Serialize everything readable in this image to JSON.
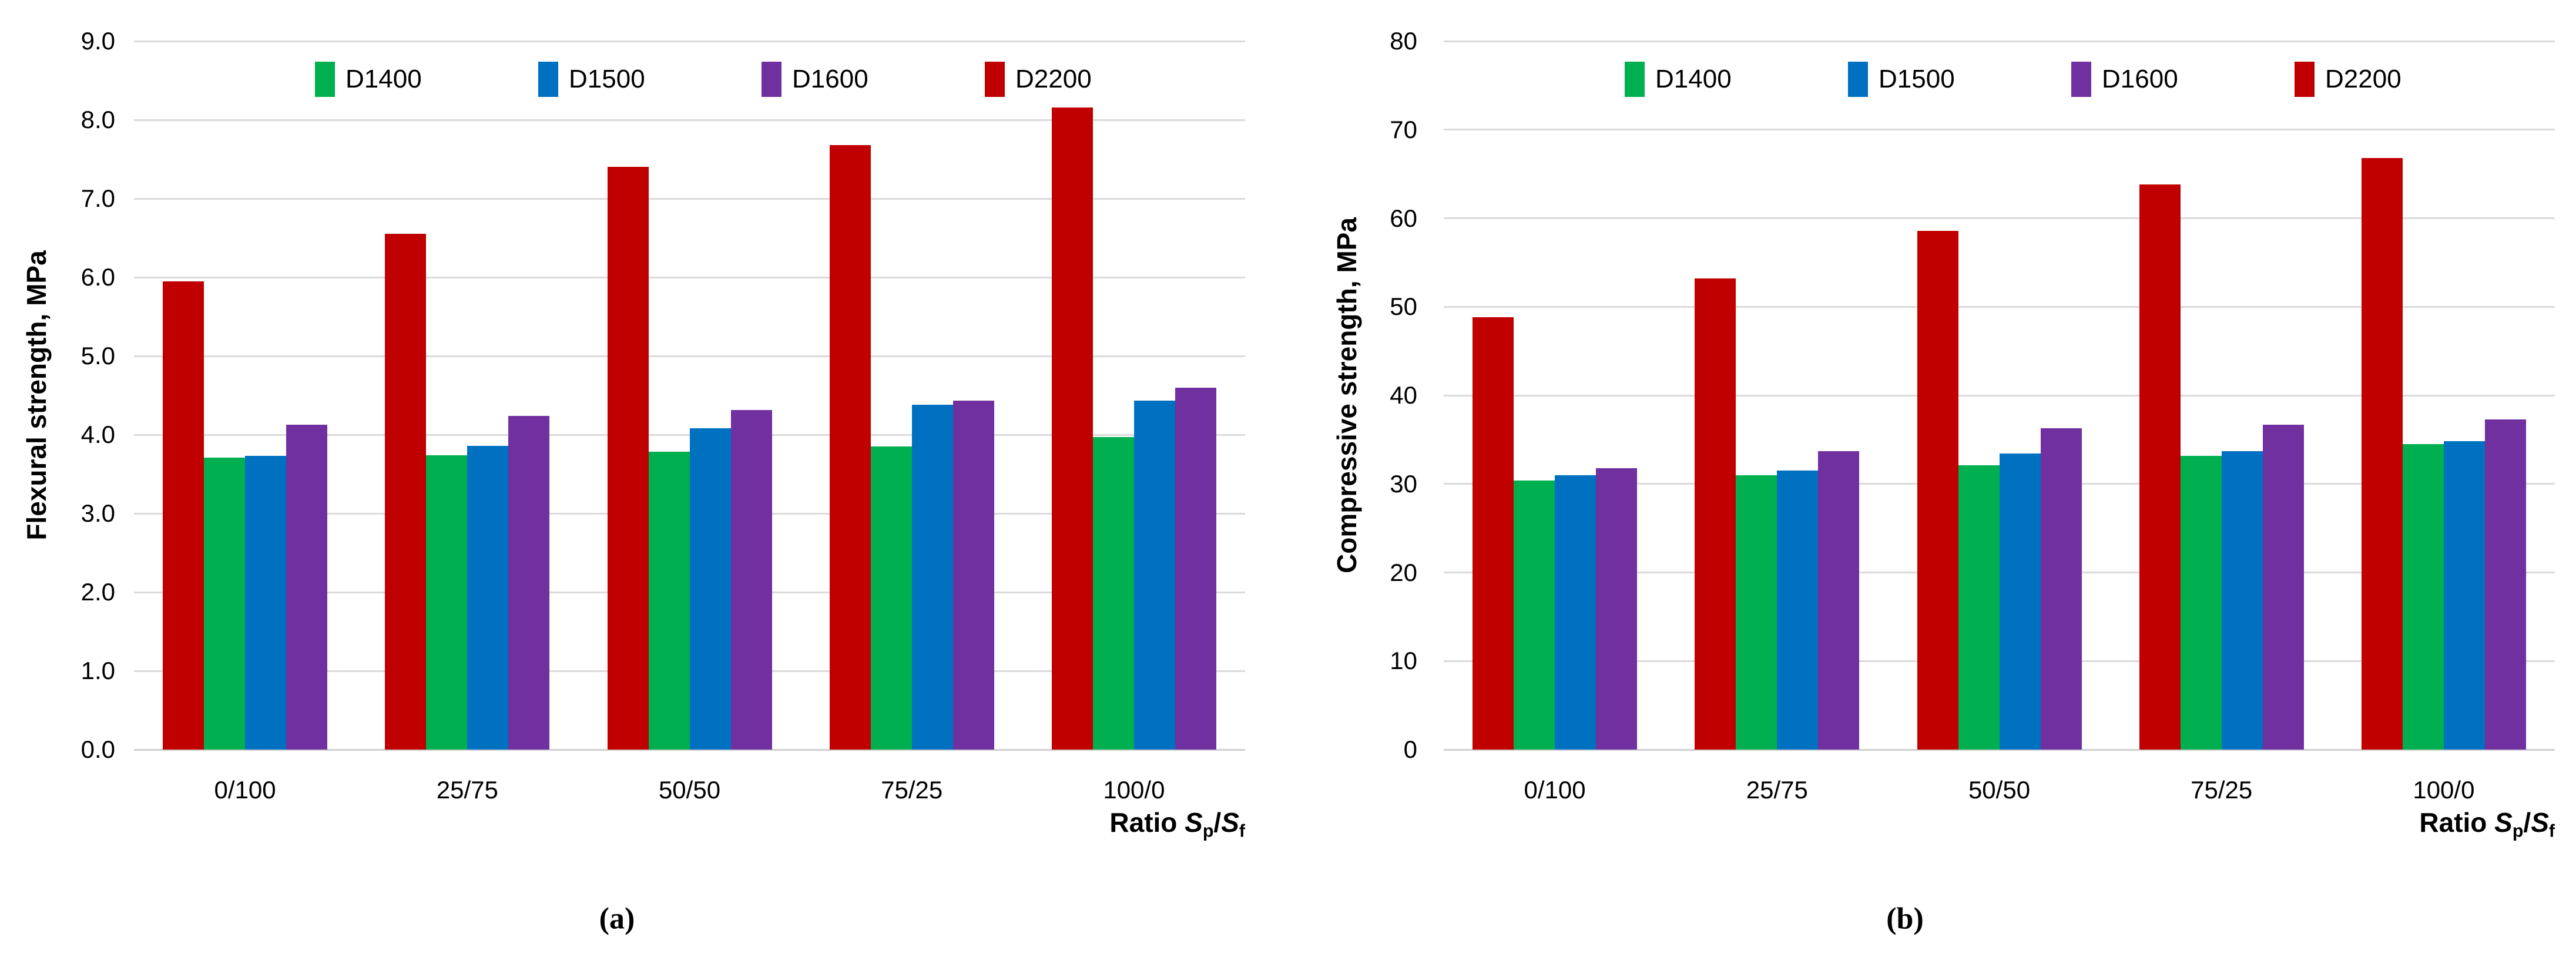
{
  "page": {
    "background": "#FFFFFF",
    "captions": [
      {
        "label": "(a)"
      },
      {
        "label": "(b)"
      }
    ]
  },
  "colors": {
    "series": {
      "D1400": "#00B050",
      "D1500": "#0070C0",
      "D1600": "#7030A0",
      "D2200": "#C00000"
    },
    "gridline": "#DADADA",
    "axis": "#D0D0D0",
    "text": "#000000"
  },
  "chart_data": [
    {
      "id": "a",
      "type": "bar",
      "title": "",
      "ylabel": "Flexural strength, MPa",
      "xlabel_runs": [
        {
          "t": "Ratio "
        },
        {
          "t": "S",
          "italic": true
        },
        {
          "t": "p",
          "sub": true
        },
        {
          "t": "/"
        },
        {
          "t": "S",
          "italic": true
        },
        {
          "t": "f",
          "sub": true
        }
      ],
      "categories": [
        "0/100",
        "25/75",
        "50/50",
        "75/25",
        "100/0"
      ],
      "ylim": [
        0,
        9
      ],
      "yticks": [
        "0.0",
        "1.0",
        "2.0",
        "3.0",
        "4.0",
        "5.0",
        "6.0",
        "7.0",
        "8.0",
        "9.0"
      ],
      "grid": true,
      "legend_position": "top",
      "legend_order": [
        "D1400",
        "D1500",
        "D1600",
        "D2200"
      ],
      "plot_order": [
        "D2200",
        "D1400",
        "D1500",
        "D1600"
      ],
      "series": [
        {
          "name": "D1400",
          "values": [
            3.71,
            3.74,
            3.78,
            3.85,
            3.97
          ]
        },
        {
          "name": "D1500",
          "values": [
            3.73,
            3.86,
            4.08,
            4.38,
            4.43
          ]
        },
        {
          "name": "D1600",
          "values": [
            4.13,
            4.24,
            4.31,
            4.43,
            4.6
          ]
        },
        {
          "name": "D2200",
          "values": [
            5.95,
            6.55,
            7.4,
            7.68,
            8.16
          ]
        }
      ]
    },
    {
      "id": "b",
      "type": "bar",
      "title": "",
      "ylabel": "Compressive strength, MPa",
      "xlabel_runs": [
        {
          "t": "Ratio "
        },
        {
          "t": "S",
          "italic": true
        },
        {
          "t": "p",
          "sub": true
        },
        {
          "t": "/"
        },
        {
          "t": "S",
          "italic": true
        },
        {
          "t": "f",
          "sub": true
        }
      ],
      "categories": [
        "0/100",
        "25/75",
        "50/50",
        "75/25",
        "100/0"
      ],
      "ylim": [
        0,
        80
      ],
      "yticks": [
        "0",
        "10",
        "20",
        "30",
        "40",
        "50",
        "60",
        "70",
        "80"
      ],
      "grid": true,
      "legend_position": "top",
      "legend_order": [
        "D1400",
        "D1500",
        "D1600",
        "D2200"
      ],
      "plot_order": [
        "D2200",
        "D1400",
        "D1500",
        "D1600"
      ],
      "series": [
        {
          "name": "D1400",
          "values": [
            30.4,
            31.0,
            32.1,
            33.2,
            34.5
          ]
        },
        {
          "name": "D1500",
          "values": [
            31.0,
            31.5,
            33.4,
            33.7,
            34.8
          ]
        },
        {
          "name": "D1600",
          "values": [
            31.8,
            33.7,
            36.3,
            36.7,
            37.3
          ]
        },
        {
          "name": "D2200",
          "values": [
            48.8,
            53.2,
            58.6,
            63.8,
            66.8
          ]
        }
      ]
    }
  ]
}
